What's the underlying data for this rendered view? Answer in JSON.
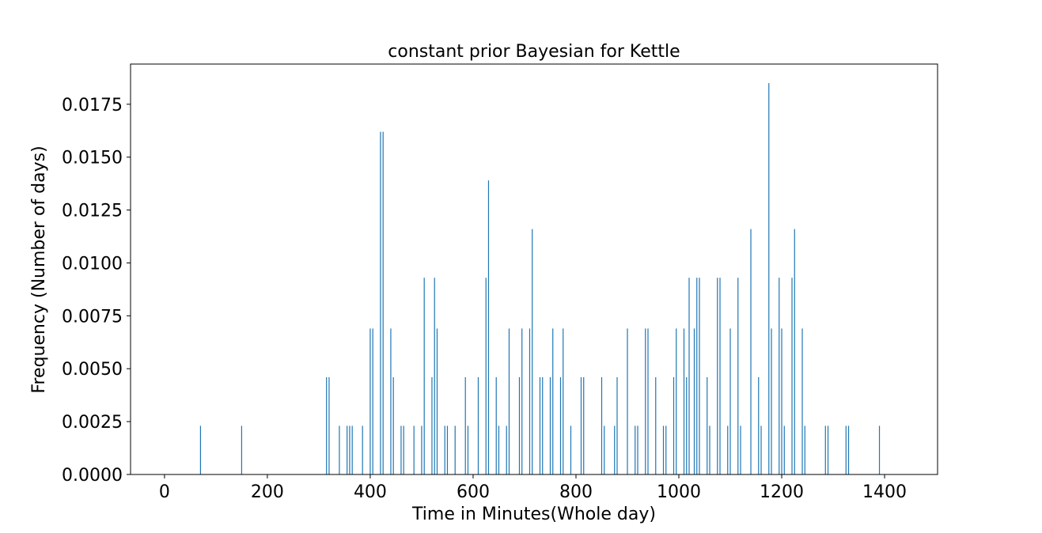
{
  "chart_data": {
    "type": "bar",
    "title": "constant prior Bayesian for Kettle",
    "xlabel": "Time in Minutes(Whole day)",
    "ylabel": "Frequency (Number of days)",
    "xlim": [
      -66,
      1503
    ],
    "ylim": [
      0,
      0.0194
    ],
    "xticks": [
      0,
      200,
      400,
      600,
      800,
      1000,
      1200,
      1400
    ],
    "xtick_labels": [
      "0",
      "200",
      "400",
      "600",
      "800",
      "1000",
      "1200",
      "1400"
    ],
    "yticks": [
      0,
      0.0025,
      0.005,
      0.0075,
      0.01,
      0.0125,
      0.015,
      0.0175
    ],
    "ytick_labels": [
      "0.0000",
      "0.0025",
      "0.0050",
      "0.0075",
      "0.0100",
      "0.0125",
      "0.0150",
      "0.0175"
    ],
    "grid": false,
    "bar_color": "#1f77b4",
    "x": [
      70,
      150,
      315,
      320,
      340,
      355,
      360,
      365,
      385,
      400,
      405,
      420,
      425,
      440,
      445,
      460,
      465,
      485,
      500,
      505,
      520,
      525,
      530,
      545,
      550,
      565,
      585,
      590,
      610,
      625,
      630,
      645,
      650,
      665,
      670,
      690,
      695,
      710,
      715,
      730,
      735,
      750,
      755,
      770,
      775,
      790,
      810,
      815,
      850,
      855,
      875,
      880,
      900,
      915,
      920,
      935,
      940,
      955,
      970,
      975,
      990,
      995,
      1010,
      1015,
      1020,
      1030,
      1035,
      1040,
      1055,
      1060,
      1075,
      1080,
      1095,
      1100,
      1115,
      1120,
      1140,
      1155,
      1160,
      1175,
      1180,
      1195,
      1200,
      1205,
      1220,
      1225,
      1240,
      1245,
      1285,
      1290,
      1325,
      1330,
      1390
    ],
    "values": [
      0.0023,
      0.0023,
      0.0046,
      0.0046,
      0.0023,
      0.0023,
      0.0023,
      0.0023,
      0.0023,
      0.0069,
      0.0069,
      0.0162,
      0.0162,
      0.0069,
      0.0046,
      0.0023,
      0.0023,
      0.0023,
      0.0023,
      0.0093,
      0.0046,
      0.0093,
      0.0069,
      0.0023,
      0.0023,
      0.0023,
      0.0046,
      0.0023,
      0.0046,
      0.0093,
      0.0139,
      0.0046,
      0.0023,
      0.0023,
      0.0069,
      0.0046,
      0.0069,
      0.0069,
      0.0116,
      0.0046,
      0.0046,
      0.0046,
      0.0069,
      0.0046,
      0.0069,
      0.0023,
      0.0046,
      0.0046,
      0.0046,
      0.0023,
      0.0023,
      0.0046,
      0.0069,
      0.0023,
      0.0023,
      0.0069,
      0.0069,
      0.0046,
      0.0023,
      0.0023,
      0.0046,
      0.0069,
      0.0069,
      0.0046,
      0.0093,
      0.0069,
      0.0093,
      0.0093,
      0.0046,
      0.0023,
      0.0093,
      0.0093,
      0.0023,
      0.0069,
      0.0093,
      0.0023,
      0.0116,
      0.0046,
      0.0023,
      0.0185,
      0.0069,
      0.0093,
      0.0069,
      0.0023,
      0.0093,
      0.0116,
      0.0069,
      0.0023,
      0.0023,
      0.0023,
      0.0023,
      0.0023,
      0.0023
    ]
  }
}
